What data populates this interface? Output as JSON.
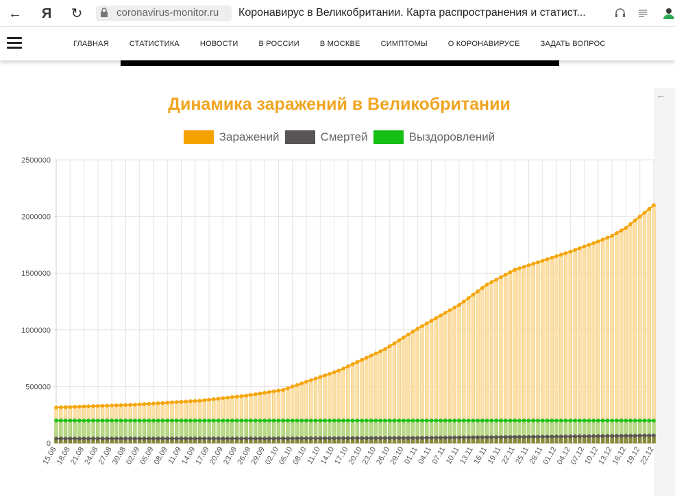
{
  "browser": {
    "back_glyph": "←",
    "yandex_glyph": "Я",
    "reload_glyph": "↻",
    "url": "coronavirus-monitor.ru",
    "tab_title": "Коронавирус в Великобритании. Карта распространения и статист..."
  },
  "nav": {
    "items": [
      "ГЛАВНАЯ",
      "СТАТИСТИКА",
      "НОВОСТИ",
      "В РОССИИ",
      "В МОСКВЕ",
      "СИМПТОМЫ",
      "О КОРОНАВИРУСЕ",
      "ЗАДАТЬ ВОПРОС"
    ]
  },
  "side_arrow": "←",
  "colors": {
    "title": "#f0a520",
    "infections": "#f5a200",
    "deaths": "#5a5555",
    "recovered": "#14c014"
  },
  "chart_data": {
    "type": "bar",
    "title": "Динамика заражений в Великобритании",
    "legend_position": "top",
    "grid": true,
    "ylim": [
      0,
      2500000
    ],
    "y_ticks": [
      0,
      500000,
      1000000,
      1500000,
      2000000,
      2500000
    ],
    "x_start": "15.08",
    "x_end": "22.12",
    "x_tick_labels": [
      "15.08",
      "18.08",
      "21.08",
      "24.08",
      "27.08",
      "30.08",
      "02.09",
      "05.09",
      "08.09",
      "11.09",
      "14.09",
      "17.09",
      "20.09",
      "23.09",
      "26.09",
      "29.09",
      "02.10",
      "05.10",
      "08.10",
      "11.10",
      "14.10",
      "17.10",
      "20.10",
      "23.10",
      "26.10",
      "29.10",
      "01.11",
      "04.11",
      "07.11",
      "10.11",
      "13.11",
      "16.11",
      "19.11",
      "22.11",
      "25.11",
      "28.11",
      "01.12",
      "04.12",
      "07.12",
      "10.12",
      "13.12",
      "16.12",
      "19.12",
      "22.12"
    ],
    "series": [
      {
        "name": "Заражений",
        "anchors": [
          {
            "x": "15.08",
            "y": 315000
          },
          {
            "x": "01.09",
            "y": 340000
          },
          {
            "x": "15.09",
            "y": 375000
          },
          {
            "x": "25.09",
            "y": 420000
          },
          {
            "x": "03.10",
            "y": 470000
          },
          {
            "x": "05.10",
            "y": 500000
          },
          {
            "x": "15.10",
            "y": 640000
          },
          {
            "x": "25.10",
            "y": 830000
          },
          {
            "x": "01.11",
            "y": 1010000
          },
          {
            "x": "10.11",
            "y": 1220000
          },
          {
            "x": "16.11",
            "y": 1400000
          },
          {
            "x": "22.11",
            "y": 1530000
          },
          {
            "x": "28.11",
            "y": 1610000
          },
          {
            "x": "04.12",
            "y": 1690000
          },
          {
            "x": "10.12",
            "y": 1780000
          },
          {
            "x": "13.12",
            "y": 1830000
          },
          {
            "x": "16.12",
            "y": 1900000
          },
          {
            "x": "22.12",
            "y": 2100000
          }
        ]
      },
      {
        "name": "Смертей",
        "anchors": [
          {
            "x": "15.08",
            "y": 41000
          },
          {
            "x": "01.10",
            "y": 42000
          },
          {
            "x": "01.11",
            "y": 47000
          },
          {
            "x": "01.12",
            "y": 59000
          },
          {
            "x": "22.12",
            "y": 68000
          }
        ]
      },
      {
        "name": "Выздоровлений",
        "anchors": [
          {
            "x": "15.08",
            "y": 200000
          },
          {
            "x": "22.12",
            "y": 200000
          }
        ]
      }
    ]
  }
}
